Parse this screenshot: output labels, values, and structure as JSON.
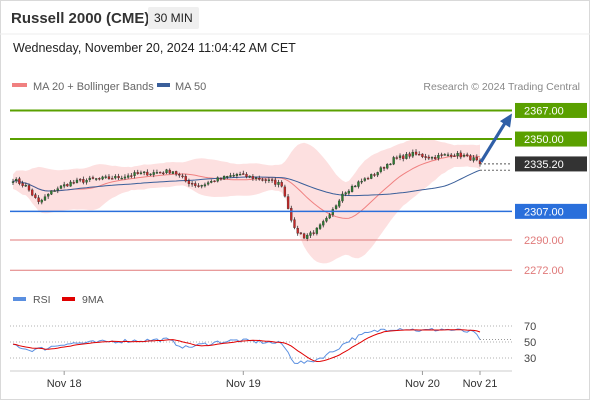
{
  "header": {
    "title": "Russell 2000 (CME)",
    "timeframe": "30 MIN",
    "datetime": "Wednesday, November 20, 2024 11:04:42 AM CET"
  },
  "colors": {
    "ma20": "#f08080",
    "ma50": "#3a5f9a",
    "band_fill": "#fde0e0",
    "resistance": "#5aa000",
    "support_blue": "#2a6fdb",
    "support_red": "#e07a7a",
    "price_tag": "#333333",
    "arrow": "#2f5fa7",
    "rsi": "#5a8fe0",
    "rsi_ma": "#e00000"
  },
  "chart_data": [
    {
      "type": "line",
      "panel": "price",
      "legend": [
        {
          "name": "MA 20 + Bollinger Bands",
          "color": "#f08080"
        },
        {
          "name": "MA 50",
          "color": "#3a5f9a"
        }
      ],
      "legend_placement": "top-left",
      "credit": "Research © 2024 Trading Central",
      "ylim": [
        2265,
        2375
      ],
      "current_price": {
        "value": 2335.2,
        "label": "2335.20"
      },
      "levels": [
        {
          "value": 2367.0,
          "label": "2367.00",
          "kind": "resistance"
        },
        {
          "value": 2350.0,
          "label": "2350.00",
          "kind": "resistance"
        },
        {
          "value": 2307.0,
          "label": "2307.00",
          "kind": "pivot"
        },
        {
          "value": 2290.0,
          "label": "2290.00",
          "kind": "support"
        },
        {
          "value": 2272.0,
          "label": "2272.00",
          "kind": "support"
        }
      ],
      "x_ticks": [
        "Nov 18",
        "Nov 19",
        "Nov 20",
        "Nov 21"
      ],
      "close_anchors": [
        [
          0,
          2326
        ],
        [
          4,
          2322
        ],
        [
          8,
          2312
        ],
        [
          13,
          2320
        ],
        [
          18,
          2324
        ],
        [
          25,
          2326
        ],
        [
          32,
          2327
        ],
        [
          38,
          2329
        ],
        [
          44,
          2330
        ],
        [
          50,
          2331
        ],
        [
          54,
          2325
        ],
        [
          58,
          2322
        ],
        [
          64,
          2326
        ],
        [
          70,
          2329
        ],
        [
          78,
          2326
        ],
        [
          84,
          2323
        ],
        [
          88,
          2296
        ],
        [
          91,
          2292
        ],
        [
          95,
          2296
        ],
        [
          99,
          2304
        ],
        [
          103,
          2318
        ],
        [
          108,
          2324
        ],
        [
          113,
          2329
        ],
        [
          119,
          2338
        ],
        [
          125,
          2341
        ],
        [
          131,
          2339
        ],
        [
          137,
          2341
        ],
        [
          141,
          2340
        ],
        [
          144,
          2338
        ],
        [
          146,
          2335.2
        ]
      ],
      "projection": {
        "from": 2335.2,
        "to": 2367.0
      }
    },
    {
      "type": "line",
      "panel": "rsi",
      "legend": [
        {
          "name": "RSI",
          "color": "#5a8fe0"
        },
        {
          "name": "9MA",
          "color": "#e00000"
        }
      ],
      "ylim": [
        20,
        80
      ],
      "y_ticks": [
        30,
        50,
        70
      ],
      "rsi_anchors": [
        [
          0,
          47
        ],
        [
          5,
          40
        ],
        [
          10,
          42
        ],
        [
          16,
          48
        ],
        [
          24,
          49
        ],
        [
          32,
          51
        ],
        [
          40,
          52
        ],
        [
          48,
          53
        ],
        [
          54,
          43
        ],
        [
          58,
          46
        ],
        [
          64,
          50
        ],
        [
          70,
          52
        ],
        [
          78,
          50
        ],
        [
          84,
          48
        ],
        [
          88,
          25
        ],
        [
          92,
          24
        ],
        [
          96,
          30
        ],
        [
          100,
          38
        ],
        [
          105,
          52
        ],
        [
          110,
          60
        ],
        [
          116,
          66
        ],
        [
          122,
          67
        ],
        [
          128,
          64
        ],
        [
          134,
          66
        ],
        [
          140,
          64
        ],
        [
          144,
          62
        ],
        [
          146,
          53
        ]
      ]
    }
  ]
}
